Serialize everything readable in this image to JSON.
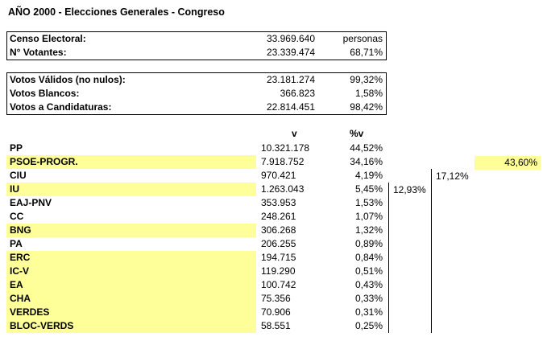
{
  "title": "AÑO 2000 - Elecciones Generales - Congreso",
  "summary1": [
    {
      "label": "Censo Electoral:",
      "value": "33.969.640",
      "extra": "personas"
    },
    {
      "label": "N° Votantes:",
      "value": "23.339.474",
      "extra": "68,71%"
    }
  ],
  "summary2": [
    {
      "label": "Votos Válidos (no nulos):",
      "value": "23.181.274",
      "extra": "99,32%"
    },
    {
      "label": "Votos Blancos:",
      "value": "366.823",
      "extra": "1,58%"
    },
    {
      "label": "Votos a Candidaturas:",
      "value": "22.814.451",
      "extra": "98,42%"
    }
  ],
  "headers": {
    "v": "v",
    "pct": "%v"
  },
  "parties": [
    {
      "name": "PP",
      "votes": "10.321.178",
      "pct": "44,52%",
      "highlight": false
    },
    {
      "name": "PSOE-PROGR.",
      "votes": "7.918.752",
      "pct": "34,16%",
      "highlight": true
    },
    {
      "name": "CIU",
      "votes": "970.421",
      "pct": "4,19%",
      "highlight": false
    },
    {
      "name": "IU",
      "votes": "1.263.043",
      "pct": "5,45%",
      "highlight": true
    },
    {
      "name": "EAJ-PNV",
      "votes": "353.953",
      "pct": "1,53%",
      "highlight": false
    },
    {
      "name": "CC",
      "votes": "248.261",
      "pct": "1,07%",
      "highlight": false
    },
    {
      "name": "BNG",
      "votes": "306.268",
      "pct": "1,32%",
      "highlight": true
    },
    {
      "name": "PA",
      "votes": "206.255",
      "pct": "0,89%",
      "highlight": false
    },
    {
      "name": "ERC",
      "votes": "194.715",
      "pct": "0,84%",
      "highlight": true
    },
    {
      "name": "IC-V",
      "votes": "119.290",
      "pct": "0,51%",
      "highlight": true
    },
    {
      "name": "EA",
      "votes": "100.742",
      "pct": "0,43%",
      "highlight": true
    },
    {
      "name": "CHA",
      "votes": "75.356",
      "pct": "0,33%",
      "highlight": true
    },
    {
      "name": "VERDES",
      "votes": "70.906",
      "pct": "0,31%",
      "highlight": true
    },
    {
      "name": "BLOC-VERDS",
      "votes": "58.551",
      "pct": "0,25%",
      "highlight": true
    }
  ],
  "aggregates": {
    "col1": "12,93%",
    "col2": "17,12%",
    "col3": "43,60%"
  },
  "colors": {
    "highlight": "#ffff99"
  }
}
